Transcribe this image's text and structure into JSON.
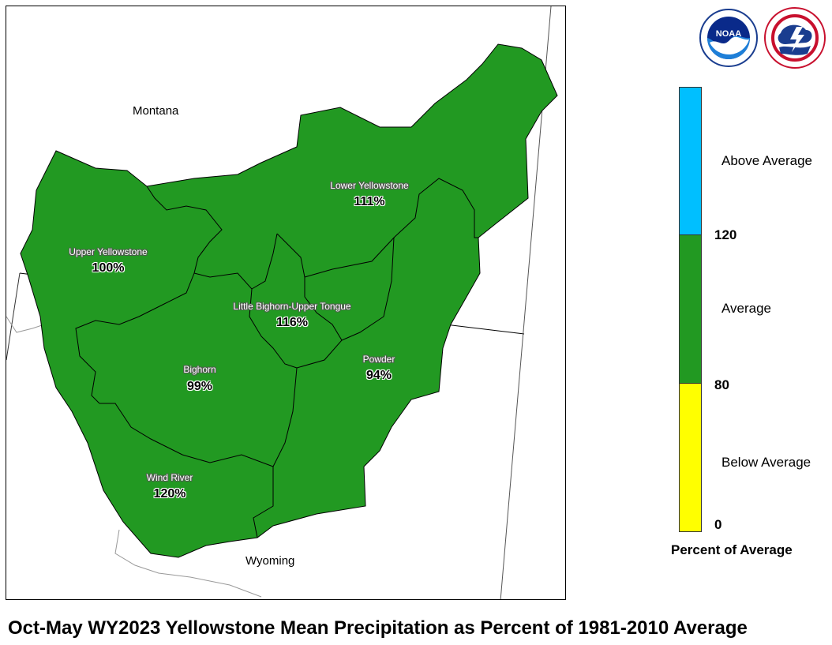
{
  "map": {
    "states": [
      {
        "name": "Montana"
      },
      {
        "name": "Wyoming"
      }
    ],
    "basins": [
      {
        "name": "Lower Yellowstone",
        "percent": "111%"
      },
      {
        "name": "Upper Yellowstone",
        "percent": "100%"
      },
      {
        "name": "Little Bighorn-Upper Tongue",
        "percent": "116%"
      },
      {
        "name": "Bighorn",
        "percent": "99%"
      },
      {
        "name": "Powder",
        "percent": "94%"
      },
      {
        "name": "Wind River",
        "percent": "120%"
      }
    ],
    "fill_color": "#229922"
  },
  "legend": {
    "title": "Percent of Average",
    "categories": [
      {
        "label": "Above Average",
        "color": "#00bfff"
      },
      {
        "label": "Average",
        "color": "#229922"
      },
      {
        "label": "Below Average",
        "color": "#ffff00"
      }
    ],
    "ticks": [
      "120",
      "80",
      "0"
    ]
  },
  "logos": [
    {
      "name": "NOAA",
      "text": "NOAA"
    },
    {
      "name": "National Weather Service"
    }
  ],
  "footer": {
    "title": "Oct-May WY2023 Yellowstone Mean Precipitation as Percent of 1981-2010 Average"
  }
}
